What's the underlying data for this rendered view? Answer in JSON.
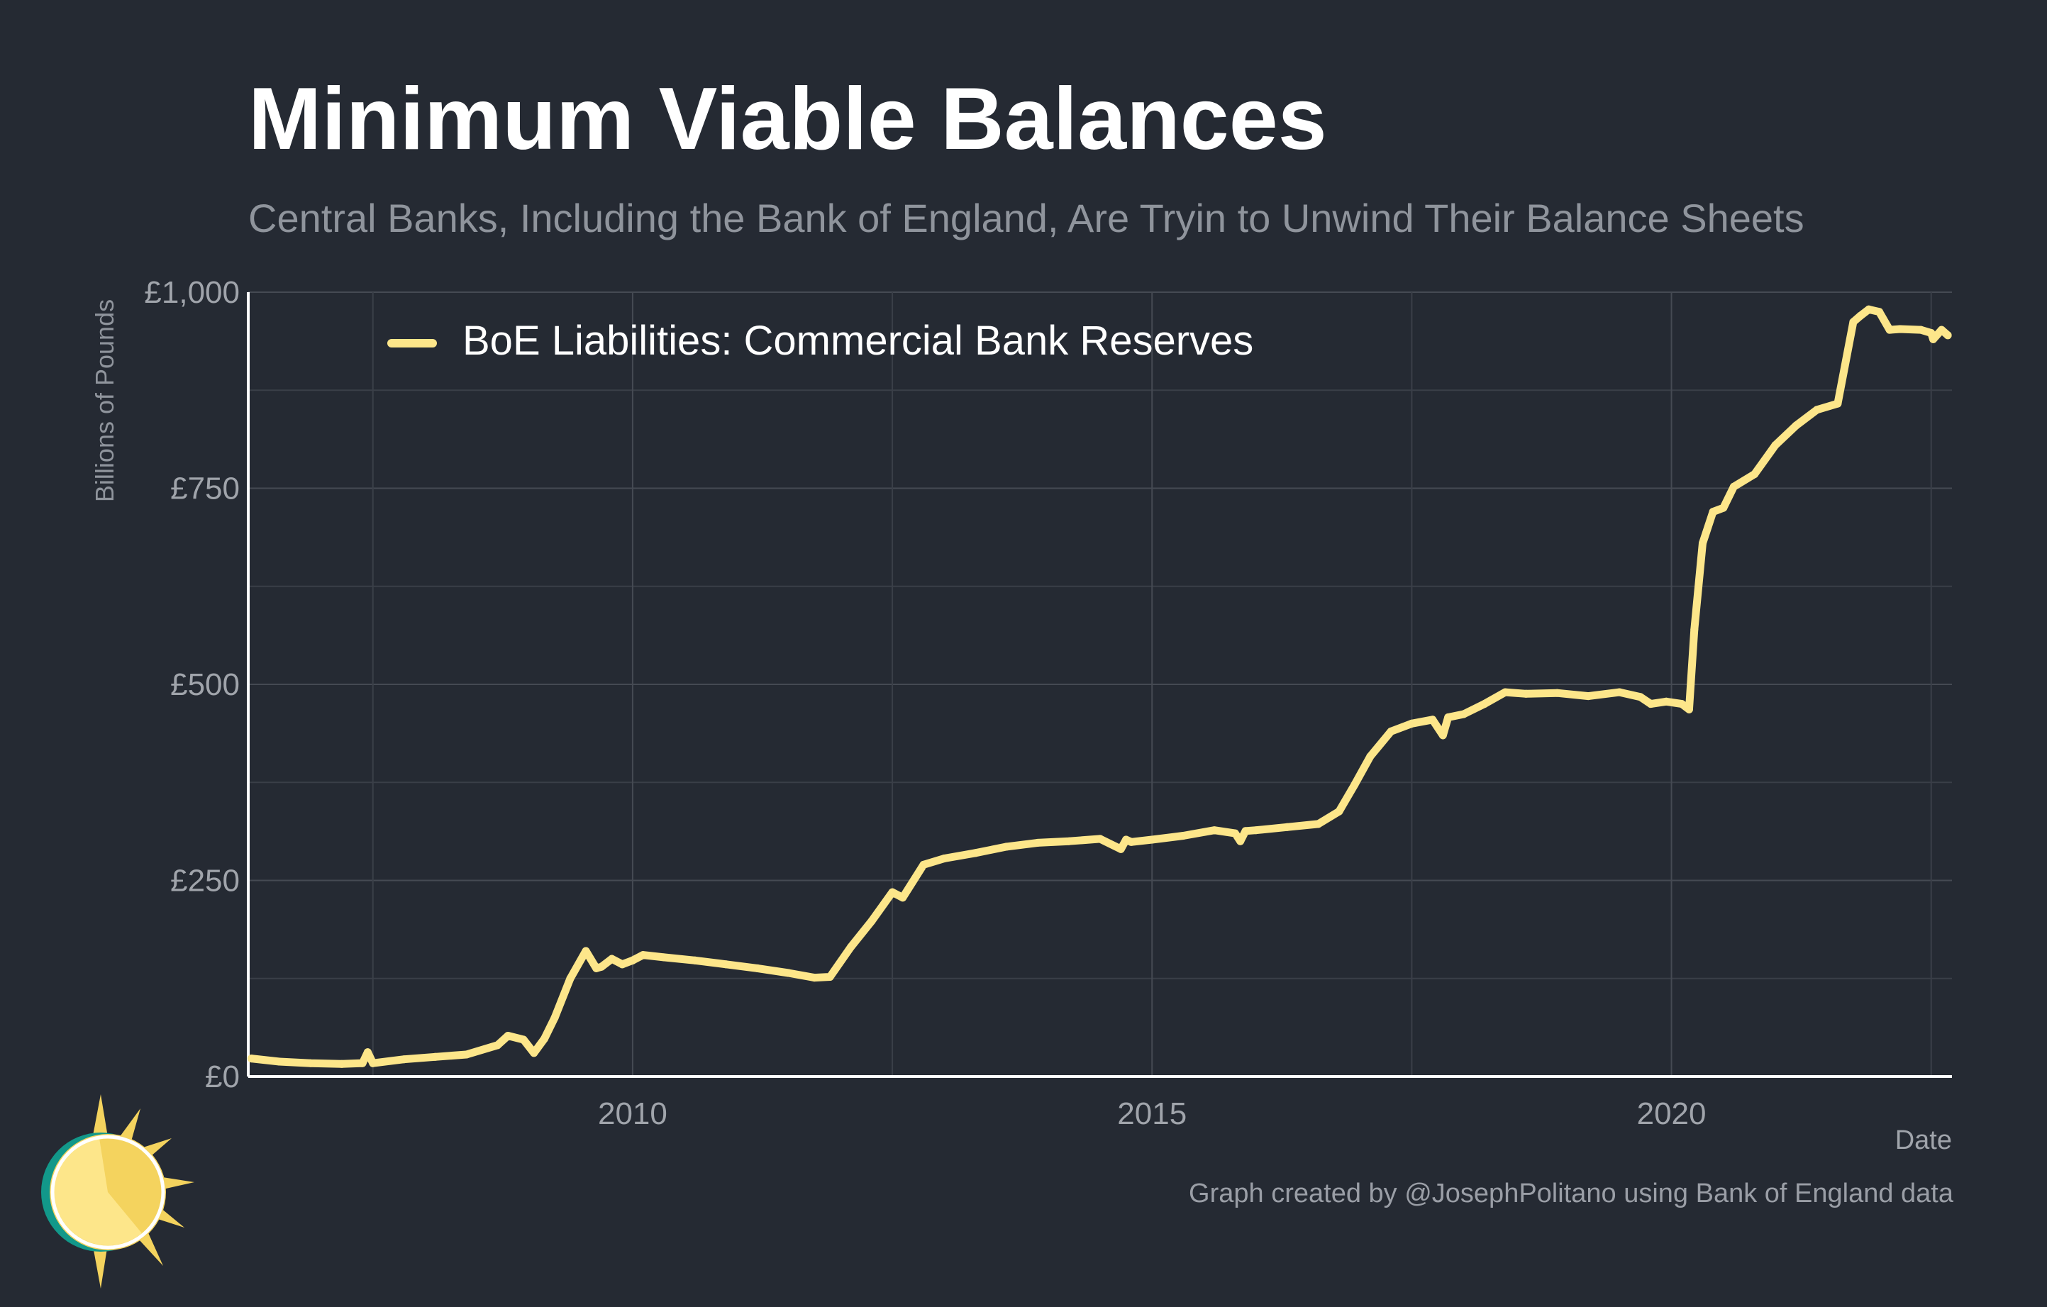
{
  "chart_data": {
    "type": "line",
    "title": "Minimum Viable Balances",
    "subtitle": "Central Banks, Including the Bank of England, Are Tryin to Unwind Their Balance Sheets",
    "xlabel": "Date",
    "ylabel": "Billions of Pounds",
    "caption": "Graph created by @JosephPolitano using Bank of England data",
    "xlim": [
      2006.3,
      2022.7
    ],
    "ylim": [
      0,
      1000
    ],
    "x_ticks": [
      {
        "value": 2010,
        "label": "2010"
      },
      {
        "value": 2015,
        "label": "2015"
      },
      {
        "value": 2020,
        "label": "2020"
      }
    ],
    "y_ticks": [
      {
        "value": 0,
        "label": "£0"
      },
      {
        "value": 250,
        "label": "£250"
      },
      {
        "value": 500,
        "label": "£500"
      },
      {
        "value": 750,
        "label": "£750"
      },
      {
        "value": 1000,
        "label": "£1,000"
      }
    ],
    "grid": true,
    "legend_position": "top-left",
    "series": [
      {
        "name": "BoE Liabilities: Commercial Bank Reserves",
        "color": "#fde68a",
        "x": [
          2006.33,
          2006.6,
          2006.9,
          2007.2,
          2007.4,
          2007.45,
          2007.5,
          2007.8,
          2008.1,
          2008.4,
          2008.7,
          2008.8,
          2008.95,
          2009.05,
          2009.15,
          2009.25,
          2009.4,
          2009.55,
          2009.65,
          2009.7,
          2009.8,
          2009.9,
          2010.0,
          2010.1,
          2010.3,
          2010.6,
          2010.9,
          2011.2,
          2011.5,
          2011.75,
          2011.9,
          2012.1,
          2012.3,
          2012.5,
          2012.6,
          2012.8,
          2013.0,
          2013.3,
          2013.6,
          2013.9,
          2014.2,
          2014.5,
          2014.7,
          2014.75,
          2014.8,
          2015.0,
          2015.3,
          2015.6,
          2015.8,
          2015.85,
          2015.9,
          2016.0,
          2016.3,
          2016.6,
          2016.8,
          2016.95,
          2017.1,
          2017.3,
          2017.5,
          2017.7,
          2017.8,
          2017.85,
          2018.0,
          2018.2,
          2018.4,
          2018.6,
          2018.9,
          2019.2,
          2019.5,
          2019.7,
          2019.8,
          2019.95,
          2020.1,
          2020.17,
          2020.22,
          2020.3,
          2020.4,
          2020.5,
          2020.6,
          2020.8,
          2021.0,
          2021.2,
          2021.4,
          2021.6,
          2021.75,
          2021.82,
          2021.9,
          2022.0,
          2022.1,
          2022.2,
          2022.4,
          2022.5,
          2022.52,
          2022.6,
          2022.66
        ],
        "values": [
          23,
          19,
          17,
          16,
          17,
          31,
          17,
          22,
          25,
          28,
          40,
          52,
          47,
          30,
          48,
          75,
          125,
          160,
          138,
          140,
          150,
          143,
          148,
          155,
          152,
          148,
          143,
          138,
          132,
          126,
          127,
          165,
          198,
          235,
          228,
          270,
          278,
          285,
          293,
          298,
          300,
          303,
          290,
          302,
          299,
          302,
          307,
          314,
          310,
          300,
          313,
          314,
          318,
          322,
          338,
          372,
          408,
          440,
          450,
          455,
          435,
          458,
          462,
          475,
          490,
          488,
          489,
          485,
          490,
          484,
          475,
          478,
          475,
          468,
          570,
          680,
          720,
          725,
          752,
          768,
          805,
          830,
          850,
          858,
          962,
          970,
          978,
          975,
          952,
          953,
          952,
          948,
          940,
          952,
          945
        ]
      }
    ]
  }
}
